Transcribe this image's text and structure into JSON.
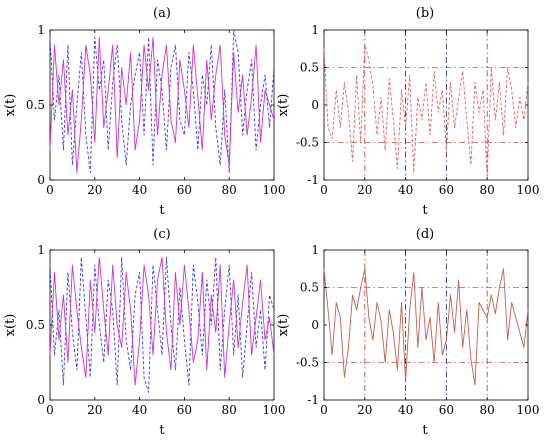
{
  "chart_data": [
    {
      "panel": "a",
      "type": "line",
      "title": "(a)",
      "xlabel": "t",
      "ylabel": "x(t)",
      "xlim": [
        0,
        100
      ],
      "ylim": [
        0,
        1
      ],
      "xticks": [
        "0",
        "20",
        "40",
        "60",
        "80",
        "100"
      ],
      "yticks": [
        "0",
        "0.5",
        "1"
      ],
      "grid": false,
      "x": [
        0,
        2,
        4,
        6,
        8,
        10,
        12,
        14,
        16,
        18,
        20,
        22,
        24,
        26,
        28,
        30,
        32,
        34,
        36,
        38,
        40,
        42,
        44,
        46,
        48,
        50,
        52,
        54,
        56,
        58,
        60,
        62,
        64,
        66,
        68,
        70,
        72,
        74,
        76,
        78,
        80,
        82,
        84,
        86,
        88,
        90,
        92,
        94,
        96,
        98,
        100
      ],
      "series": [
        {
          "color": "#3a3ae0",
          "style": "dashed",
          "values": [
            0.95,
            0.4,
            0.7,
            0.2,
            0.9,
            0.1,
            0.5,
            0.85,
            0.3,
            0.05,
            0.95,
            0.6,
            0.8,
            0.2,
            0.65,
            0.9,
            0.4,
            0.1,
            0.5,
            0.7,
            0.85,
            0.3,
            0.95,
            0.1,
            0.8,
            0.6,
            0.2,
            0.75,
            0.9,
            0.4,
            0.3,
            0.85,
            0.6,
            0.2,
            0.7,
            0.5,
            0.9,
            0.35,
            0.1,
            0.6,
            0.05,
            1.0,
            0.85,
            0.3,
            0.6,
            0.8,
            0.2,
            0.5,
            0.7,
            0.35,
            0.75
          ]
        },
        {
          "color": "#cc33cc",
          "style": "solid",
          "values": [
            0.2,
            0.9,
            0.5,
            0.8,
            0.3,
            0.6,
            0.05,
            0.4,
            0.9,
            0.7,
            0.25,
            0.95,
            0.35,
            0.6,
            0.9,
            0.15,
            0.75,
            0.5,
            0.85,
            0.2,
            0.4,
            0.9,
            0.6,
            0.95,
            0.3,
            0.7,
            0.9,
            0.4,
            0.25,
            0.8,
            0.6,
            0.35,
            0.9,
            0.55,
            0.2,
            0.8,
            0.4,
            0.7,
            0.9,
            0.3,
            0.1,
            0.85,
            0.45,
            0.7,
            0.3,
            0.55,
            0.9,
            0.25,
            0.6,
            0.5,
            0.4
          ]
        }
      ]
    },
    {
      "panel": "b",
      "type": "line",
      "title": "(b)",
      "xlabel": "t",
      "ylabel": "x(t)",
      "xlim": [
        0,
        100
      ],
      "ylim": [
        -1,
        1
      ],
      "xticks": [
        "0",
        "20",
        "40",
        "60",
        "80",
        "100"
      ],
      "yticks": [
        "-1",
        "-0.5",
        "0",
        "0.5",
        "1"
      ],
      "grid": false,
      "hlines": [
        0.5,
        -0.5
      ],
      "vlines": [
        {
          "x": 20,
          "color": "#cc4444"
        },
        {
          "x": 40,
          "color": "#333355"
        },
        {
          "x": 60,
          "color": "#333355"
        },
        {
          "x": 80,
          "color": "#cc4444"
        }
      ],
      "x": [
        0,
        2,
        4,
        6,
        8,
        10,
        12,
        14,
        16,
        18,
        20,
        22,
        24,
        26,
        28,
        30,
        32,
        34,
        36,
        38,
        40,
        42,
        44,
        46,
        48,
        50,
        52,
        54,
        56,
        58,
        60,
        62,
        64,
        66,
        68,
        70,
        72,
        74,
        76,
        78,
        80,
        82,
        84,
        86,
        88,
        90,
        92,
        94,
        96,
        98,
        100
      ],
      "series": [
        {
          "color": "#e06060",
          "style": "dashed",
          "values": [
            0.75,
            -0.3,
            -0.45,
            0.2,
            -0.3,
            0.3,
            -0.1,
            -0.75,
            0.4,
            -0.5,
            0.8,
            0.6,
            0.25,
            -0.4,
            0.1,
            -0.6,
            0.35,
            -0.2,
            -0.85,
            0.2,
            -0.3,
            0.4,
            -0.9,
            0.1,
            -0.2,
            0.3,
            -0.4,
            0.45,
            -0.1,
            0.2,
            -0.6,
            0.3,
            -0.3,
            0.1,
            0.45,
            -0.2,
            -0.8,
            0.3,
            -0.1,
            0.2,
            -0.95,
            0.5,
            -0.2,
            0.3,
            -0.4,
            0.5,
            0.2,
            -0.3,
            0.1,
            -0.2,
            0.3
          ]
        }
      ]
    },
    {
      "panel": "c",
      "type": "line",
      "title": "(c)",
      "xlabel": "t",
      "ylabel": "x(t)",
      "xlim": [
        0,
        100
      ],
      "ylim": [
        0,
        1
      ],
      "xticks": [
        "0",
        "20",
        "40",
        "60",
        "80",
        "100"
      ],
      "yticks": [
        "0",
        "0.5",
        "1"
      ],
      "grid": false,
      "x": [
        0,
        2,
        4,
        6,
        8,
        10,
        12,
        14,
        16,
        18,
        20,
        22,
        24,
        26,
        28,
        30,
        32,
        34,
        36,
        38,
        40,
        42,
        44,
        46,
        48,
        50,
        52,
        54,
        56,
        58,
        60,
        62,
        64,
        66,
        68,
        70,
        72,
        74,
        76,
        78,
        80,
        82,
        84,
        86,
        88,
        90,
        92,
        94,
        96,
        98,
        100
      ],
      "series": [
        {
          "color": "#3a3ae0",
          "style": "dashed",
          "values": [
            0.9,
            0.3,
            0.6,
            0.1,
            0.85,
            0.45,
            0.2,
            0.95,
            0.55,
            0.15,
            0.9,
            0.5,
            0.25,
            0.8,
            0.6,
            0.1,
            0.95,
            0.4,
            0.2,
            0.7,
            0.85,
            0.15,
            0.05,
            0.9,
            0.6,
            0.3,
            0.95,
            0.5,
            0.2,
            0.75,
            0.4,
            0.1,
            0.9,
            0.65,
            0.3,
            0.8,
            0.5,
            0.95,
            0.2,
            0.6,
            0.9,
            0.3,
            0.7,
            0.15,
            0.5,
            0.85,
            0.35,
            0.6,
            0.2,
            0.7,
            0.6
          ]
        },
        {
          "color": "#cc33cc",
          "style": "solid",
          "values": [
            0.3,
            0.85,
            0.4,
            0.7,
            0.25,
            0.9,
            0.6,
            0.35,
            0.15,
            0.8,
            0.45,
            0.95,
            0.6,
            0.3,
            0.9,
            0.5,
            0.35,
            0.85,
            0.6,
            0.1,
            0.4,
            0.9,
            0.7,
            0.3,
            0.8,
            0.95,
            0.45,
            0.2,
            0.85,
            0.5,
            0.9,
            0.6,
            0.25,
            0.4,
            0.85,
            0.2,
            0.7,
            0.45,
            0.9,
            0.15,
            0.5,
            0.8,
            0.35,
            0.65,
            0.9,
            0.3,
            0.55,
            0.8,
            0.4,
            0.55,
            0.3
          ]
        }
      ]
    },
    {
      "panel": "d",
      "type": "line",
      "title": "(d)",
      "xlabel": "t",
      "ylabel": "x(t)",
      "xlim": [
        0,
        100
      ],
      "ylim": [
        -1,
        1
      ],
      "xticks": [
        "0",
        "20",
        "40",
        "60",
        "80",
        "100"
      ],
      "yticks": [
        "-1",
        "-0.5",
        "0",
        "0.5",
        "1"
      ],
      "grid": false,
      "hlines": [
        0.5,
        -0.5
      ],
      "vlines": [
        {
          "x": 20,
          "color": "#cc4444"
        },
        {
          "x": 40,
          "color": "#333355"
        },
        {
          "x": 60,
          "color": "#333355"
        },
        {
          "x": 80,
          "color": "#cc4444"
        }
      ],
      "x": [
        0,
        2,
        4,
        6,
        8,
        10,
        12,
        14,
        16,
        18,
        20,
        22,
        24,
        26,
        28,
        30,
        32,
        34,
        36,
        38,
        40,
        42,
        44,
        46,
        48,
        50,
        52,
        54,
        56,
        58,
        60,
        62,
        64,
        66,
        68,
        70,
        72,
        74,
        76,
        78,
        80,
        82,
        84,
        86,
        88,
        90,
        92,
        94,
        96,
        98,
        100
      ],
      "series": [
        {
          "color": "#c06050",
          "style": "solid",
          "values": [
            0.75,
            0.2,
            -0.4,
            0.3,
            0.1,
            -0.7,
            -0.3,
            0.4,
            0.2,
            0.5,
            0.75,
            0.1,
            -0.2,
            0.3,
            0.05,
            -0.5,
            0.2,
            -0.1,
            -0.6,
            0.3,
            -0.75,
            0.2,
            0.7,
            -0.3,
            0.5,
            -0.2,
            0.1,
            -0.5,
            0.3,
            -0.4,
            -0.2,
            0.4,
            -0.1,
            0.6,
            -0.3,
            0.2,
            -0.45,
            -0.8,
            0.3,
            0.2,
            0.1,
            0.4,
            0.15,
            0.5,
            0.75,
            -0.2,
            0.3,
            0.1,
            -0.1,
            -0.3,
            0.2
          ]
        }
      ]
    }
  ]
}
